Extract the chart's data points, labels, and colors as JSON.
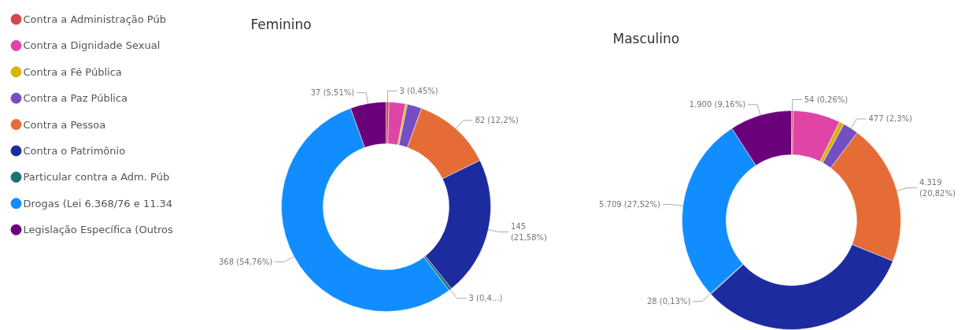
{
  "chart_data": [
    {
      "type": "donut",
      "title": "Feminino",
      "legend": "left",
      "categories": [
        "Contra a Administração Púb",
        "Contra a Dignidade Sexual",
        "Contra a Fé Pública",
        "Contra a Paz Pública",
        "Contra a Pessoa",
        "Contra o Patrimônio",
        "Particular contra a Adm. Púb",
        "Drogas (Lei 6.368/76 e 11.34",
        "Legislação Específica (Outros"
      ],
      "values": [
        3,
        17,
        2,
        15,
        82,
        145,
        3,
        368,
        37
      ],
      "colors": [
        "#d64550",
        "#e044a7",
        "#d9b300",
        "#744ec2",
        "#e66c37",
        "#1c2b9e",
        "#197278",
        "#118dff",
        "#6b007b"
      ],
      "value_labels": [
        "3 (0,45%)",
        null,
        null,
        null,
        "82 (12,2%)",
        "145 (21,58%)",
        "3 (0,4...)",
        "368 (54,76%)",
        "37 (5,51%)"
      ]
    },
    {
      "type": "donut",
      "title": "Masculino",
      "categories": [
        null,
        null,
        null,
        null,
        null,
        null,
        null,
        null,
        null
      ],
      "values": [
        54,
        1450,
        150,
        477,
        4319,
        6650,
        28,
        5709,
        1900
      ],
      "colors": [
        "#d64550",
        "#e044a7",
        "#d9b300",
        "#744ec2",
        "#e66c37",
        "#1c2b9e",
        "#197278",
        "#118dff",
        "#6b007b"
      ],
      "value_labels": [
        "54 (0,26%)",
        null,
        null,
        "477 (2,3%)",
        "4.319 (20,82%)",
        null,
        "28 (0,13%)",
        "5.709 (27,52%)",
        "1.900 (9,16%)"
      ]
    }
  ]
}
